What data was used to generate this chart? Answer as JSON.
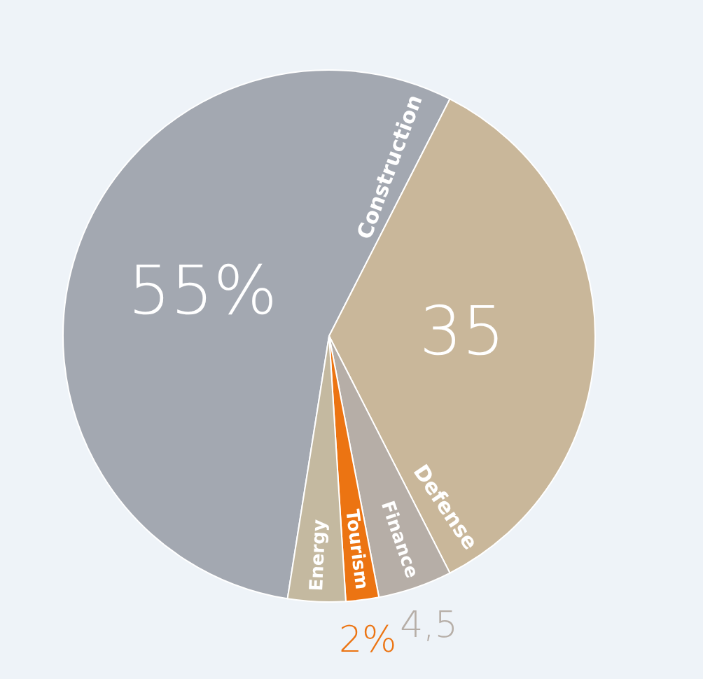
{
  "chart_data": {
    "type": "pie",
    "categories": [
      "Construction",
      "Defense",
      "Finance",
      "Tourism",
      "Energy"
    ],
    "values": [
      55,
      35,
      4.5,
      2,
      3.5
    ],
    "colors": [
      "#a3a8b1",
      "#c9b79a",
      "#b6aea7",
      "#ec7412",
      "#c4b9a0"
    ],
    "value_labels": [
      "55%",
      "35",
      "4,5",
      "2%",
      null
    ]
  }
}
